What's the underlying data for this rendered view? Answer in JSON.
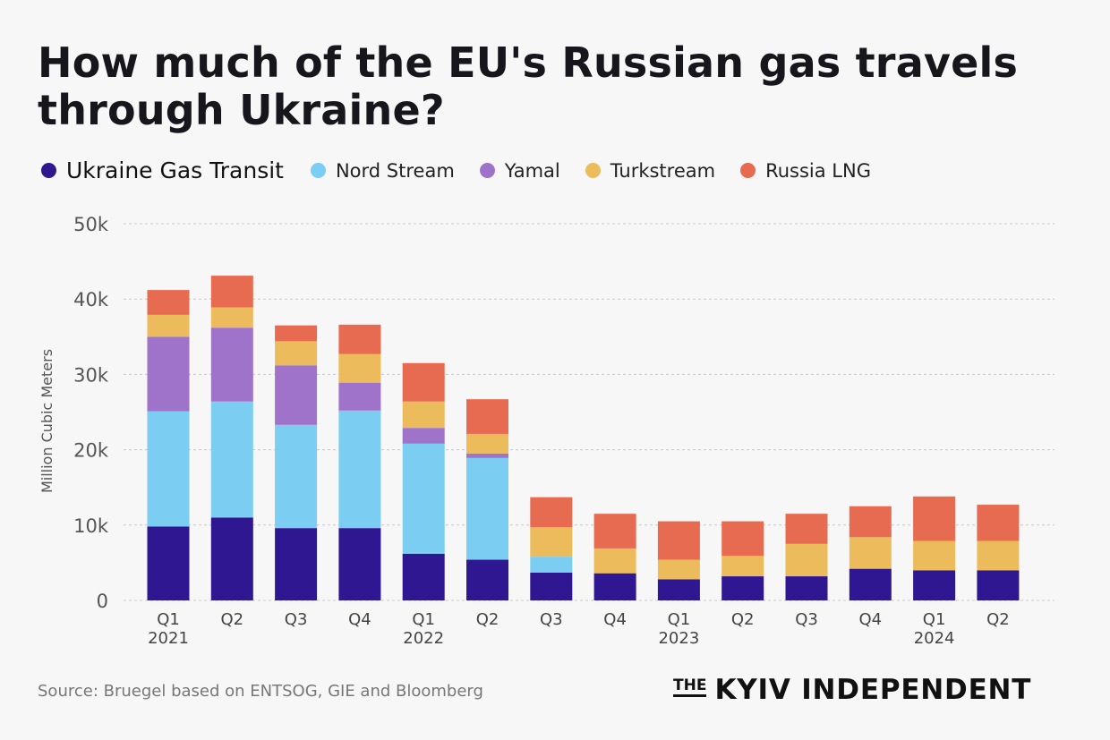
{
  "header": {
    "title": "How much of the EU's Russian gas travels through Ukraine?"
  },
  "legend": [
    {
      "label": "Ukraine Gas Transit",
      "color": "#2e1791"
    },
    {
      "label": "Nord Stream",
      "color": "#7bcdf1"
    },
    {
      "label": "Yamal",
      "color": "#9f73c9"
    },
    {
      "label": "Turkstream",
      "color": "#ebbb5c"
    },
    {
      "label": "Russia LNG",
      "color": "#e66b50"
    }
  ],
  "footer": {
    "source": "Source: Bruegel based on ENTSOG, GIE and Bloomberg",
    "brand_the": "THE",
    "brand_name": "KYIV INDEPENDENT"
  },
  "chart_data": {
    "type": "bar",
    "stacked": true,
    "ylabel": "Million Cubic Meters",
    "ylim": [
      0,
      50000
    ],
    "yticks": [
      0,
      10000,
      20000,
      30000,
      40000,
      50000
    ],
    "ytick_labels": [
      "0",
      "10k",
      "20k",
      "30k",
      "40k",
      "50k"
    ],
    "grid": "horizontal dashed",
    "legend_position": "top-left",
    "categories": [
      "Q1",
      "Q2",
      "Q3",
      "Q4",
      "Q1",
      "Q2",
      "Q3",
      "Q4",
      "Q1",
      "Q2",
      "Q3",
      "Q4",
      "Q1",
      "Q2"
    ],
    "year_labels": [
      "2021",
      "",
      "",
      "",
      "2022",
      "",
      "",
      "",
      "2023",
      "",
      "",
      "",
      "2024",
      ""
    ],
    "series": [
      {
        "name": "Ukraine Gas Transit",
        "color": "#2e1791",
        "values": [
          9800,
          11000,
          9600,
          9600,
          6200,
          5400,
          3700,
          3600,
          2800,
          3200,
          3200,
          4200,
          4000,
          4000
        ]
      },
      {
        "name": "Nord Stream",
        "color": "#7bcdf1",
        "values": [
          15300,
          15400,
          13700,
          15600,
          14600,
          13500,
          2100,
          0,
          0,
          0,
          0,
          0,
          0,
          0
        ]
      },
      {
        "name": "Yamal",
        "color": "#9f73c9",
        "values": [
          9900,
          9800,
          7900,
          3700,
          2100,
          600,
          0,
          0,
          0,
          0,
          0,
          0,
          0,
          0
        ]
      },
      {
        "name": "Turkstream",
        "color": "#ebbb5c",
        "values": [
          2900,
          2700,
          3200,
          3800,
          3500,
          2600,
          3900,
          3300,
          2600,
          2700,
          4300,
          4200,
          3900,
          3900
        ]
      },
      {
        "name": "Russia LNG",
        "color": "#e66b50",
        "values": [
          3300,
          4200,
          2100,
          3900,
          5100,
          4600,
          4000,
          4600,
          5100,
          4600,
          4000,
          4100,
          5900,
          4800
        ]
      }
    ]
  }
}
